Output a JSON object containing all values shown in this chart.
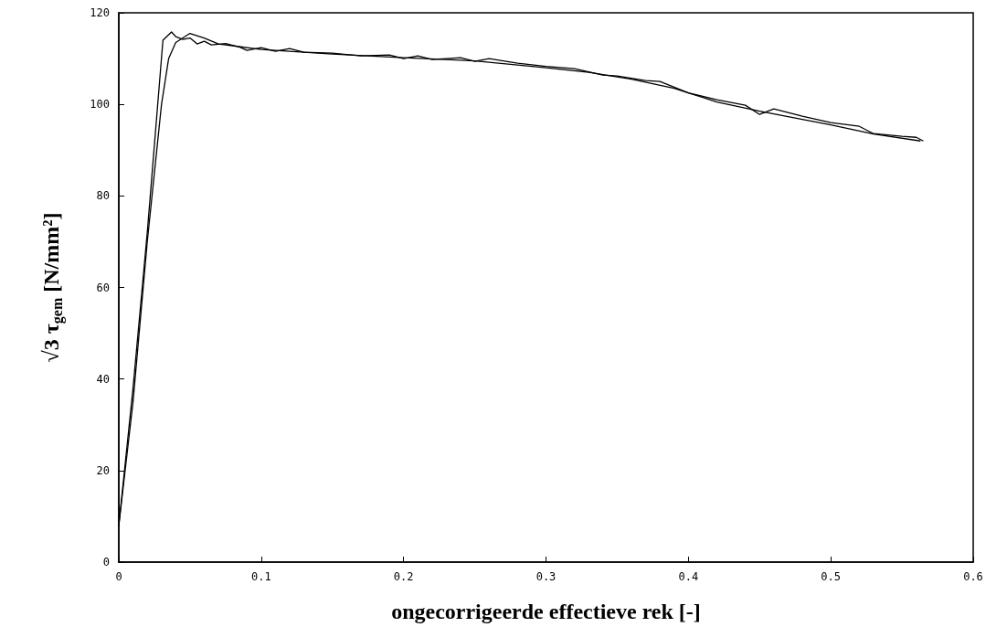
{
  "chart_data": {
    "type": "line",
    "xlabel": "ongecorrigeerde effectieve rek [-]",
    "ylabel": "√3 τ$_{gem}$ [N/mm²]",
    "xlim": [
      0,
      0.6
    ],
    "xticks": [
      0,
      0.1,
      0.2,
      0.3,
      0.4,
      0.5,
      0.6
    ],
    "ylim": [
      0,
      120
    ],
    "yticks": [
      0,
      20,
      40,
      60,
      80,
      100,
      120
    ],
    "grid": false,
    "marker": "none",
    "line_style": "solid",
    "series": [
      {
        "color": "#000000",
        "x": [
          0,
          0.01,
          0.02,
          0.031,
          0.037,
          0.04,
          0.045,
          0.05,
          0.055,
          0.06,
          0.065,
          0.075,
          0.085,
          0.09,
          0.1,
          0.11,
          0.12,
          0.13,
          0.15,
          0.17,
          0.19,
          0.2,
          0.21,
          0.22,
          0.24,
          0.25,
          0.26,
          0.28,
          0.3,
          0.32,
          0.34,
          0.35,
          0.37,
          0.38,
          0.4,
          0.42,
          0.44,
          0.45,
          0.46,
          0.48,
          0.5,
          0.52,
          0.53,
          0.55,
          0.56,
          0.565
        ],
        "values": [
          8,
          38,
          72,
          114,
          115.8,
          114.8,
          114.2,
          114.5,
          113.2,
          113.8,
          113,
          113.3,
          112.5,
          111.8,
          112.4,
          111.6,
          112.2,
          111.4,
          111.2,
          110.6,
          110.8,
          110,
          110.6,
          109.8,
          110.2,
          109.4,
          110,
          109,
          108.3,
          107.8,
          106.4,
          106.2,
          105.2,
          105,
          102.5,
          101,
          99.8,
          97.8,
          99,
          97.4,
          96,
          95.2,
          93.6,
          93,
          92.8,
          92
        ]
      },
      {
        "color": "#000000",
        "x": [
          0,
          0.01,
          0.02,
          0.03,
          0.035,
          0.04,
          0.05,
          0.06,
          0.07,
          0.1,
          0.15,
          0.2,
          0.25,
          0.3,
          0.33,
          0.36,
          0.39,
          0.42,
          0.45,
          0.5,
          0.53,
          0.563
        ],
        "values": [
          8,
          35,
          70,
          100,
          110,
          113.5,
          115.5,
          114.5,
          113.2,
          112,
          111,
          110.2,
          109.5,
          108,
          107,
          105.5,
          103.5,
          100.5,
          98.5,
          95.5,
          93.5,
          92
        ]
      }
    ]
  }
}
